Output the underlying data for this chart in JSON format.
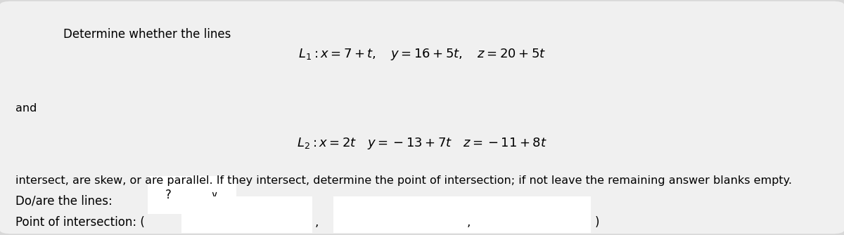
{
  "bg_color": "#d8d8d8",
  "inner_bg_color": "#f0f0f0",
  "title_text": "Determine whether the lines",
  "line1_math": "$L_1 : x = 7 + t, \\quad y = 16 + 5t, \\quad z = 20 + 5t$",
  "and_text": "and",
  "line2_math": "$L_2 : x = 2t \\quad y = -13 + 7t \\quad z = -11 + 8t$",
  "bottom_text": "intersect, are skew, or are parallel. If they intersect, determine the point of intersection; if not leave the remaining answer blanks empty.",
  "label1": "Do/are the lines:",
  "label2": "Point of intersection: (",
  "dropdown_text": "?",
  "close_paren": ")",
  "comma": ",",
  "font_size_title": 12,
  "font_size_math": 13,
  "font_size_body": 11.5,
  "font_size_label": 12
}
